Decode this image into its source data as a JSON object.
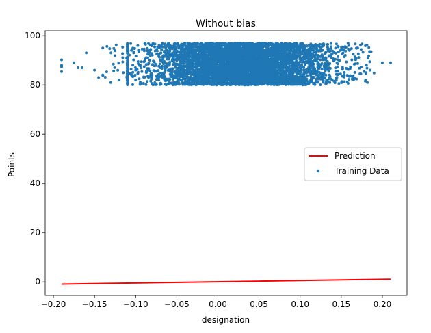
{
  "chart_data": {
    "type": "scatter",
    "title": "Without bias",
    "xlabel": "designation",
    "ylabel": "Points",
    "xlim": [
      -0.21,
      0.23
    ],
    "ylim": [
      -5.5,
      102
    ],
    "xticks": [
      -0.2,
      -0.15,
      -0.1,
      -0.05,
      0.0,
      0.05,
      0.1,
      0.15,
      0.2
    ],
    "xtick_labels": [
      "−0.20",
      "−0.15",
      "−0.10",
      "−0.05",
      "0.00",
      "0.05",
      "0.10",
      "0.15",
      "0.20"
    ],
    "yticks": [
      0,
      20,
      40,
      60,
      80,
      100
    ],
    "ytick_labels": [
      "0",
      "20",
      "40",
      "60",
      "80",
      "100"
    ],
    "grid": false,
    "legend_position": "center-right",
    "series": [
      {
        "name": "Prediction",
        "type": "line",
        "color": "#ff0000",
        "x": [
          -0.19,
          0.21
        ],
        "y": [
          -0.9,
          1.1
        ]
      },
      {
        "name": "Training Data",
        "type": "scatter",
        "color": "#1f77b4",
        "points_description": "dense cloud of training points",
        "x_range": [
          -0.19,
          0.21
        ],
        "y_range": [
          80,
          97
        ],
        "sample_points": [
          [
            -0.19,
            90.2
          ],
          [
            -0.19,
            88.0
          ],
          [
            -0.19,
            87.3
          ],
          [
            -0.19,
            85.4
          ],
          [
            -0.175,
            89.0
          ],
          [
            -0.17,
            87.0
          ],
          [
            -0.165,
            87.0
          ],
          [
            -0.16,
            93.0
          ],
          [
            -0.15,
            86.0
          ],
          [
            -0.145,
            83.0
          ],
          [
            -0.14,
            84.0
          ],
          [
            -0.14,
            95.0
          ],
          [
            -0.13,
            93.0
          ],
          [
            -0.12,
            82.0
          ],
          [
            -0.115,
            85.0
          ],
          [
            -0.105,
            94.0
          ],
          [
            -0.1,
            82.0
          ],
          [
            0.185,
            86.0
          ],
          [
            0.18,
            85.0
          ],
          [
            0.17,
            95.0
          ],
          [
            0.16,
            94.0
          ],
          [
            0.155,
            92.0
          ],
          [
            0.21,
            89.0
          ],
          [
            0.2,
            89.0
          ]
        ]
      }
    ]
  }
}
